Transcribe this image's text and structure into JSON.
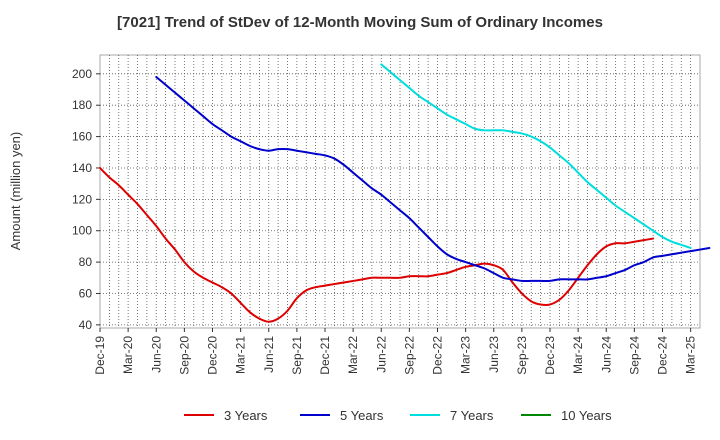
{
  "chart_data": {
    "type": "line",
    "title": "[7021]  Trend of StDev of 12-Month Moving Sum of Ordinary Incomes",
    "xlabel": "",
    "ylabel": "Amount (million yen)",
    "ylim": [
      38,
      212
    ],
    "yticks": [
      40,
      60,
      80,
      100,
      120,
      140,
      160,
      180,
      200
    ],
    "x_tick_labels": [
      "Dec-19",
      "Mar-20",
      "Jun-20",
      "Sep-20",
      "Dec-20",
      "Mar-21",
      "Jun-21",
      "Sep-21",
      "Dec-21",
      "Mar-22",
      "Jun-22",
      "Sep-22",
      "Dec-22",
      "Mar-23",
      "Jun-23",
      "Sep-23",
      "Dec-23",
      "Mar-24",
      "Jun-24",
      "Sep-24",
      "Dec-24",
      "Mar-25"
    ],
    "x_months_count": 64,
    "grid": true,
    "legend_position": "bottom",
    "series": [
      {
        "name": "3 Years",
        "color": "#dd0000",
        "start_month_index": 0,
        "values": [
          140,
          134,
          129,
          123,
          117,
          110,
          103,
          95,
          88,
          80,
          74,
          70,
          67,
          64,
          60,
          54,
          48,
          44,
          42,
          44,
          49,
          57,
          62,
          64,
          65,
          66,
          67,
          68,
          69,
          70,
          70,
          70,
          70,
          71,
          71,
          71,
          72,
          73,
          75,
          77,
          78,
          79,
          78,
          75,
          67,
          60,
          55,
          53,
          53,
          56,
          62,
          70,
          78,
          85,
          90,
          92,
          92,
          93,
          94,
          95
        ]
      },
      {
        "name": "5 Years",
        "color": "#0000cc",
        "start_month_index": 6,
        "values": [
          198,
          193,
          188,
          183,
          178,
          173,
          168,
          164,
          160,
          157,
          154,
          152,
          151,
          152,
          152,
          151,
          150,
          149,
          148,
          146,
          142,
          137,
          132,
          127,
          123,
          118,
          113,
          108,
          102,
          96,
          90,
          85,
          82,
          80,
          78,
          76,
          73,
          70,
          69,
          68,
          68,
          68,
          68,
          69,
          69,
          69,
          69,
          70,
          71,
          73,
          75,
          78,
          80,
          83,
          84,
          85,
          86,
          87,
          88,
          89
        ]
      },
      {
        "name": "7 Years",
        "color": "#00dddd",
        "start_month_index": 30,
        "values": [
          206,
          201,
          196,
          191,
          186,
          182,
          178,
          174,
          171,
          168,
          165,
          164,
          164,
          164,
          163,
          162,
          160,
          157,
          153,
          148,
          143,
          137,
          131,
          126,
          121,
          116,
          112,
          108,
          104,
          100,
          96,
          93,
          91,
          89
        ]
      },
      {
        "name": "10 Years",
        "color": "#008800",
        "start_month_index": 0,
        "values": []
      }
    ]
  }
}
